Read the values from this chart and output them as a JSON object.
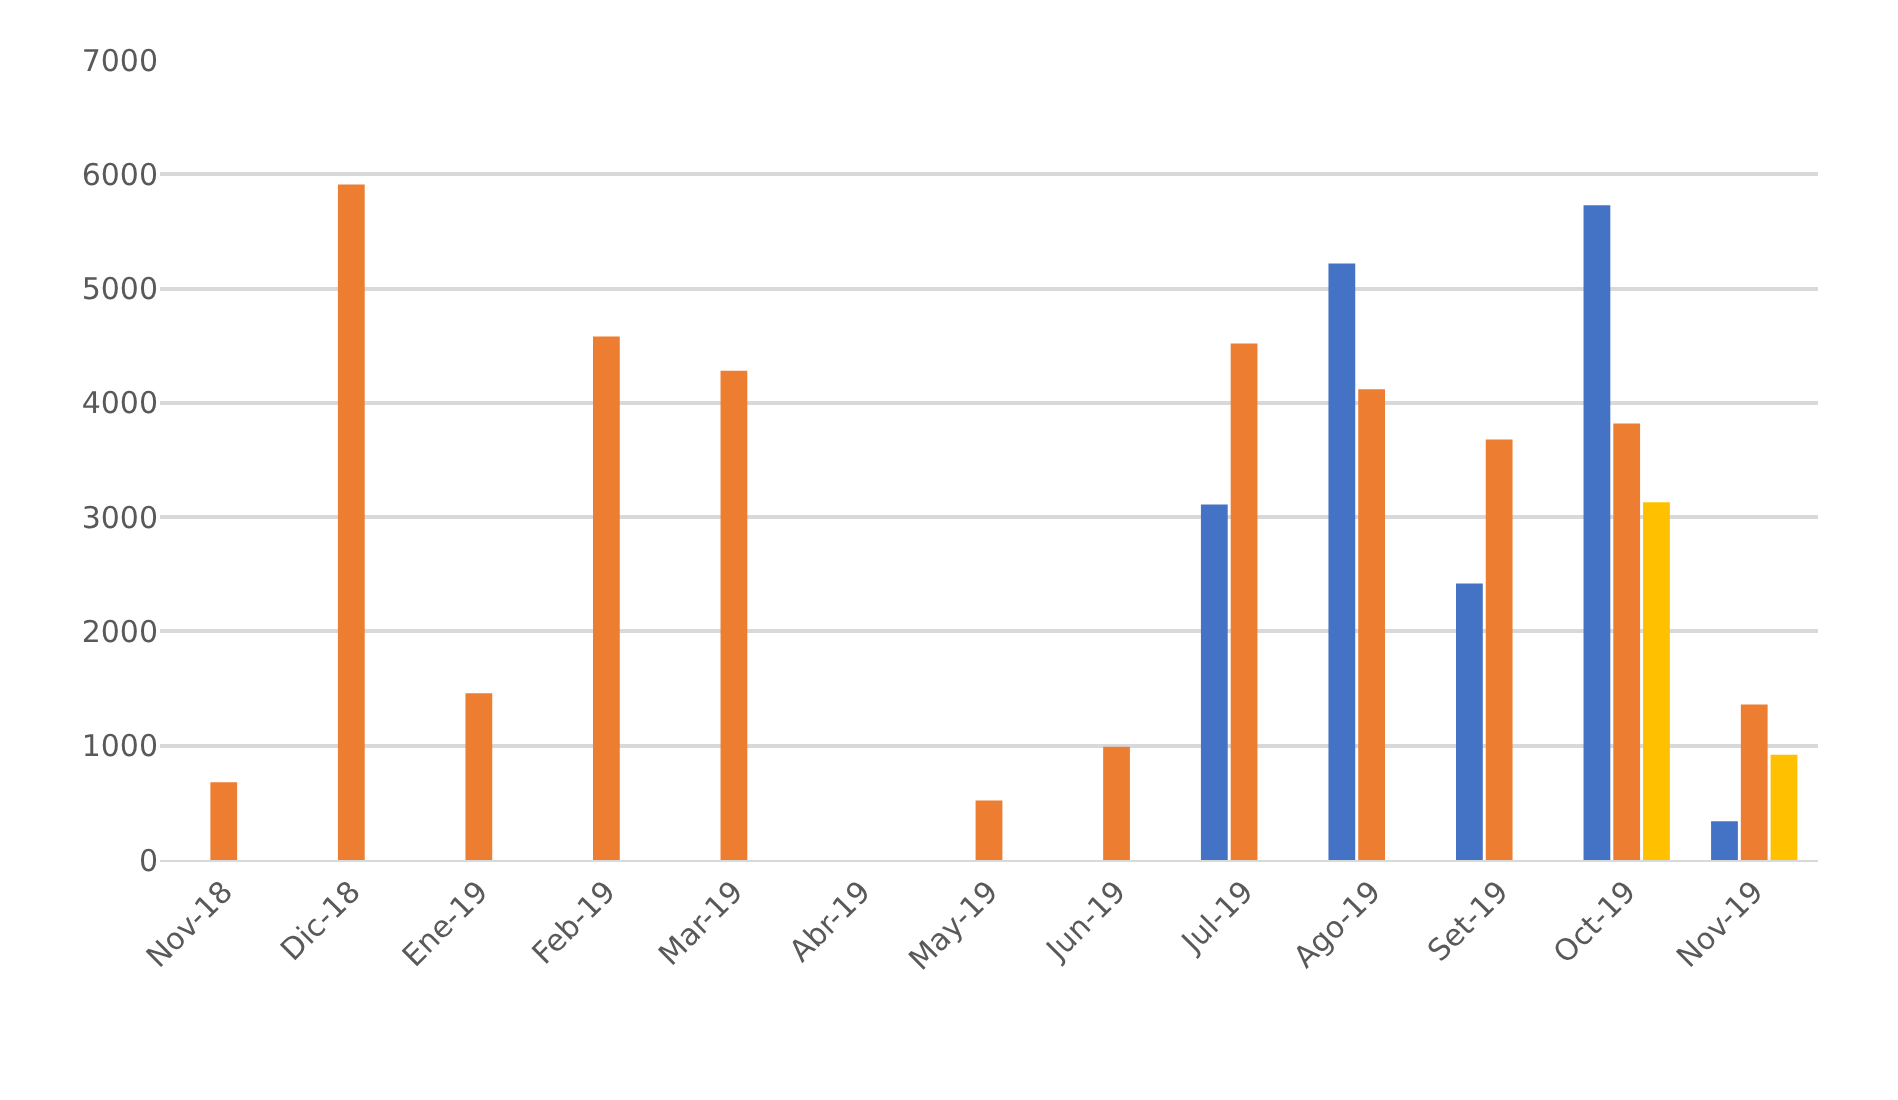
{
  "chart_data": {
    "type": "bar",
    "categories": [
      "Nov-18",
      "Dic-18",
      "Ene-19",
      "Feb-19",
      "Mar-19",
      "Abr-19",
      "May-19",
      "Jun-19",
      "Jul-19",
      "Ago-19",
      "Set-19",
      "Oct-19",
      "Nov-19"
    ],
    "series": [
      {
        "color": "#4472c4",
        "values": [
          null,
          null,
          null,
          null,
          null,
          null,
          null,
          null,
          3110,
          5220,
          2420,
          5730,
          340
        ]
      },
      {
        "color": "#ed7d31",
        "values": [
          680,
          5910,
          1460,
          4580,
          4280,
          null,
          520,
          990,
          4520,
          4120,
          3680,
          3820,
          1360
        ]
      },
      {
        "color": "#ffc000",
        "values": [
          null,
          null,
          null,
          null,
          null,
          null,
          null,
          null,
          null,
          null,
          null,
          3130,
          920
        ]
      }
    ],
    "ylim": [
      0,
      7000
    ],
    "yticks": [
      0,
      1000,
      2000,
      3000,
      4000,
      5000,
      6000,
      7000
    ],
    "grid": "y"
  }
}
